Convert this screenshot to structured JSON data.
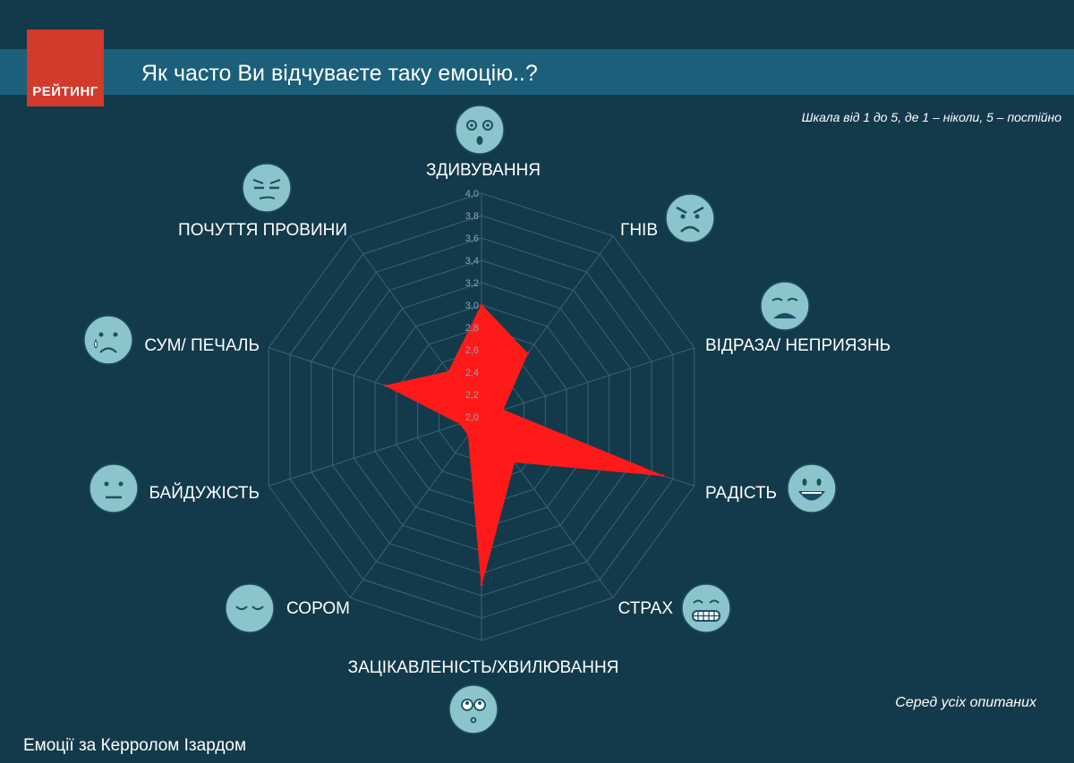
{
  "header": {
    "logo_text": "РЕЙТИНГ",
    "title": "Як часто Ви відчуваєте таку емоцію..?"
  },
  "scale_note": "Шкала від 1 до 5, де 1 – ніколи, 5 – постійно",
  "footer": {
    "left": "Емоції за Керролом Ізардом",
    "right": "Серед усіх опитаних"
  },
  "colors": {
    "background": "#133a4b",
    "title_band": "#1b5f7a",
    "logo": "#d23a2c",
    "series_fill": "#ff1a1a",
    "grid": "#3d6272",
    "emoji_face": "#8cc4cb"
  },
  "chart_data": {
    "type": "radar",
    "categories": [
      "ЗДИВУВАННЯ",
      "ГНІВ",
      "ВІДРАЗА/ НЕПРИЯЗНЬ",
      "РАДІСТЬ",
      "СТРАХ",
      "ЗАЦІКАВЛЕНІСТЬ/ХВИЛЮВАННЯ",
      "СОРОМ",
      "БАЙДУЖІСТЬ",
      "СУМ/ ПЕЧАЛЬ",
      "ПОЧУТТЯ ПРОВИНИ"
    ],
    "category_icons": [
      "surprised-face-icon",
      "angry-face-icon",
      "disgusted-face-icon",
      "grinning-face-icon",
      "grimacing-face-icon",
      "curious-face-icon",
      "ashamed-face-icon",
      "neutral-face-icon",
      "crying-face-icon",
      "guilty-face-icon"
    ],
    "series": [
      {
        "values": [
          3.0,
          2.7,
          2.2,
          3.7,
          2.5,
          3.5,
          2.2,
          2.2,
          2.9,
          2.5
        ]
      }
    ],
    "rlim": [
      2.0,
      4.0
    ],
    "ticks": [
      "2,0",
      "2,2",
      "2,4",
      "2,6",
      "2,8",
      "3,0",
      "3,2",
      "3,4",
      "3,6",
      "3,8",
      "4,0"
    ],
    "grid": true,
    "legend": false
  }
}
